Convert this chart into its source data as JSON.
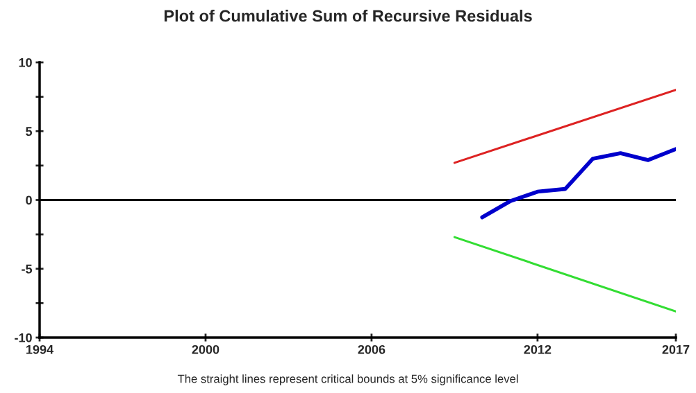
{
  "chart_data": {
    "type": "line",
    "title": "Plot of Cumulative Sum of Recursive Residuals",
    "annotations": [
      "The straight lines represent critical bounds at 5% significance level"
    ],
    "series": [
      {
        "color": "#0000cc",
        "x": [
          2010,
          2011,
          2012,
          2013,
          2014,
          2015,
          2016,
          2017
        ],
        "values": [
          -1.26,
          -0.1,
          0.6,
          0.8,
          3.0,
          3.4,
          2.9,
          3.7
        ]
      },
      {
        "color": "#dd2222",
        "x": [
          2009,
          2017
        ],
        "values": [
          2.7,
          8.0
        ]
      },
      {
        "color": "#33dd33",
        "x": [
          2009,
          2017
        ],
        "values": [
          -2.7,
          -8.1
        ]
      }
    ],
    "xlim": [
      1994,
      2017
    ],
    "xticks": [
      1994,
      2000,
      2006,
      2012,
      2017
    ],
    "ylim": [
      -10,
      10
    ],
    "yticks": [
      -10,
      {
        "value": -7.5,
        "label": null
      },
      -5,
      {
        "value": -2.5,
        "label": null
      },
      0,
      {
        "value": 2.5,
        "label": null
      },
      5,
      {
        "value": 7.5,
        "label": null
      },
      10
    ],
    "ref_lines": [
      {
        "axis": "y",
        "value": 0,
        "color": "#000000"
      }
    ],
    "grid": false,
    "legend": false
  }
}
